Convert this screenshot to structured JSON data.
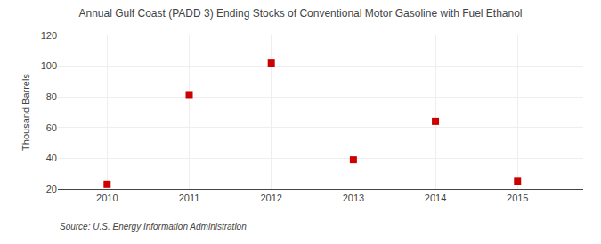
{
  "chart_data": {
    "type": "scatter",
    "title": "Annual Gulf Coast (PADD 3) Ending Stocks of Conventional Motor Gasoline with Fuel Ethanol",
    "ylabel": "Thousand Barrels",
    "annotations": [
      "Source: U.S. Energy Information Administration"
    ],
    "x": [
      2010,
      2011,
      2012,
      2013,
      2014,
      2015
    ],
    "values": [
      23,
      81,
      102,
      39,
      64,
      25
    ],
    "color": "#cc0000",
    "marker": "square",
    "xlim": [
      2009.4,
      2015.8
    ],
    "xticks": [
      2010,
      2011,
      2012,
      2013,
      2014,
      2015
    ],
    "ylim": [
      20,
      120
    ],
    "yticks": [
      20,
      40,
      60,
      80,
      100,
      120
    ],
    "grid": true
  }
}
